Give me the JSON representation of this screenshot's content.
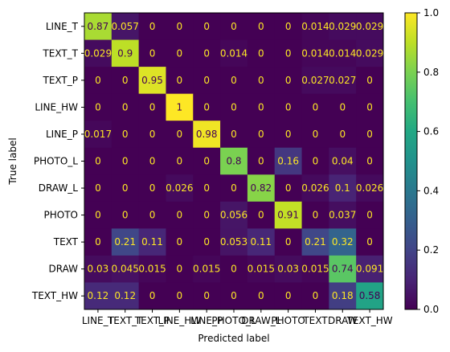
{
  "chart_data": {
    "type": "heatmap",
    "xlabel": "Predicted label",
    "ylabel": "True label",
    "row_labels": [
      "LINE_T",
      "TEXT_T",
      "TEXT_P",
      "LINE_HW",
      "LINE_P",
      "PHOTO_L",
      "DRAW_L",
      "PHOTO",
      "TEXT",
      "DRAW",
      "TEXT_HW"
    ],
    "col_labels": [
      "LINE_T",
      "TEXT_T",
      "TEXT_P",
      "LINE_HW",
      "LINE_P",
      "PHOTO_L",
      "DRAW_L",
      "PHOTO",
      "TEXT",
      "DRAW",
      "TEXT_HW"
    ],
    "values": [
      [
        0.87,
        0.057,
        0,
        0,
        0,
        0,
        0,
        0,
        0.014,
        0.029,
        0.029
      ],
      [
        0.029,
        0.9,
        0,
        0,
        0,
        0.014,
        0,
        0,
        0.014,
        0.014,
        0.029
      ],
      [
        0,
        0,
        0.95,
        0,
        0,
        0,
        0,
        0,
        0.027,
        0.027,
        0
      ],
      [
        0,
        0,
        0,
        1,
        0,
        0,
        0,
        0,
        0,
        0,
        0
      ],
      [
        0.017,
        0,
        0,
        0,
        0.98,
        0,
        0,
        0,
        0,
        0,
        0
      ],
      [
        0,
        0,
        0,
        0,
        0,
        0.8,
        0,
        0.16,
        0,
        0.04,
        0
      ],
      [
        0,
        0,
        0,
        0.026,
        0,
        0,
        0.82,
        0,
        0.026,
        0.1,
        0.026
      ],
      [
        0,
        0,
        0,
        0,
        0,
        0.056,
        0,
        0.91,
        0,
        0.037,
        0
      ],
      [
        0,
        0.21,
        0.11,
        0,
        0,
        0.053,
        0.11,
        0,
        0.21,
        0.32,
        0
      ],
      [
        0.03,
        0.045,
        0.015,
        0,
        0.015,
        0,
        0.015,
        0.03,
        0.015,
        0.74,
        0.091
      ],
      [
        0.12,
        0.12,
        0,
        0,
        0,
        0,
        0,
        0,
        0,
        0.18,
        0.58
      ]
    ],
    "cell_labels": [
      [
        "0.87",
        "0.057",
        "0",
        "0",
        "0",
        "0",
        "0",
        "0",
        "0.014",
        "0.029",
        "0.029"
      ],
      [
        "0.029",
        "0.9",
        "0",
        "0",
        "0",
        "0.014",
        "0",
        "0",
        "0.014",
        "0.014",
        "0.029"
      ],
      [
        "0",
        "0",
        "0.95",
        "0",
        "0",
        "0",
        "0",
        "0",
        "0.027",
        "0.027",
        "0"
      ],
      [
        "0",
        "0",
        "0",
        "1",
        "0",
        "0",
        "0",
        "0",
        "0",
        "0",
        "0"
      ],
      [
        "0.017",
        "0",
        "0",
        "0",
        "0.98",
        "0",
        "0",
        "0",
        "0",
        "0",
        "0"
      ],
      [
        "0",
        "0",
        "0",
        "0",
        "0",
        "0.8",
        "0",
        "0.16",
        "0",
        "0.04",
        "0"
      ],
      [
        "0",
        "0",
        "0",
        "0.026",
        "0",
        "0",
        "0.82",
        "0",
        "0.026",
        "0.1",
        "0.026"
      ],
      [
        "0",
        "0",
        "0",
        "0",
        "0",
        "0.056",
        "0",
        "0.91",
        "0",
        "0.037",
        "0"
      ],
      [
        "0",
        "0.21",
        "0.11",
        "0",
        "0",
        "0.053",
        "0.11",
        "0",
        "0.21",
        "0.32",
        "0"
      ],
      [
        "0.03",
        "0.045",
        "0.015",
        "0",
        "0.015",
        "0",
        "0.015",
        "0.03",
        "0.015",
        "0.74",
        "0.091"
      ],
      [
        "0.12",
        "0.12",
        "0",
        "0",
        "0",
        "0",
        "0",
        "0",
        "0",
        "0.18",
        "0.58"
      ]
    ],
    "colorbar": {
      "colormap": "viridis",
      "range": [
        0,
        1
      ],
      "ticks": [
        0.0,
        0.2,
        0.4,
        0.6,
        0.8,
        1.0
      ],
      "tick_labels": [
        "0.0",
        "0.2",
        "0.4",
        "0.6",
        "0.8",
        "1.0"
      ]
    },
    "text_color_low": "#fde725",
    "text_color_high": "#440154"
  }
}
